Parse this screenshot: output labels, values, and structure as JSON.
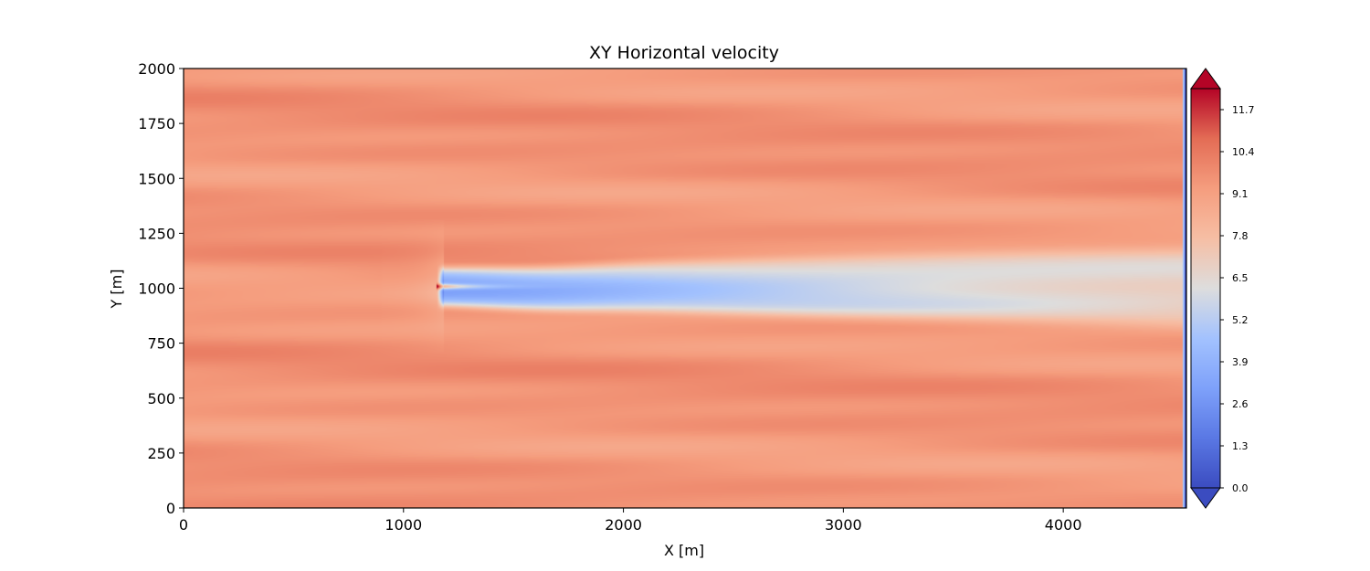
{
  "chart_data": {
    "type": "heatmap",
    "title": "XY Horizontal velocity",
    "xlabel": "X [m]",
    "ylabel": "Y [m]",
    "xlim": [
      0,
      4560
    ],
    "ylim": [
      0,
      2000
    ],
    "x_ticks": [
      0,
      1000,
      2000,
      3000,
      4000
    ],
    "y_ticks": [
      0,
      250,
      500,
      750,
      1000,
      1250,
      1500,
      1750,
      2000
    ],
    "colormap": "coolwarm",
    "colorbar": {
      "min": 0.0,
      "max": 12.35,
      "extend": "both",
      "ticks": [
        "0.0",
        "1.3",
        "2.6",
        "3.9",
        "5.2",
        "6.5",
        "7.8",
        "9.1",
        "10.4",
        "11.7"
      ],
      "colors": {
        "low": "#3b4cc0",
        "mid": "#dddddd",
        "high": "#b40426",
        "under": "#3b4cc0",
        "over": "#b40426"
      }
    },
    "field": {
      "freestream_speed": 9.5,
      "turbine_x": 1180,
      "turbine_y": 1010,
      "rotor_half_width": 125,
      "min_speed_in_wake": 3.5,
      "wake_end_x": 4560,
      "wake_end_speed": 7.4
    }
  }
}
